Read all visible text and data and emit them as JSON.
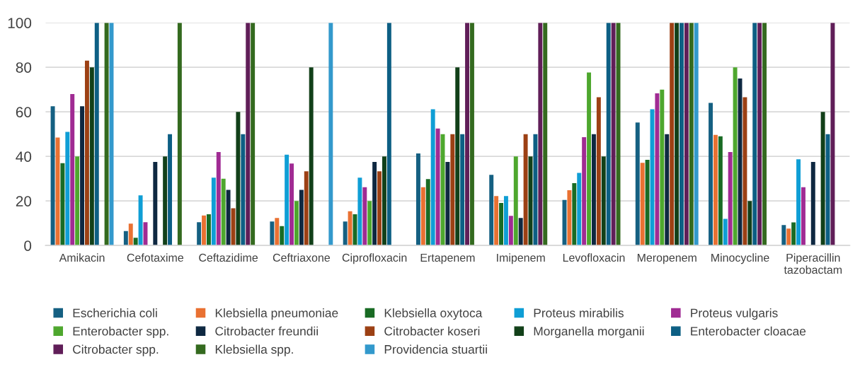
{
  "chart_data": {
    "type": "bar",
    "categories": [
      "Amikacin",
      "Cefotaxime",
      "Ceftazidime",
      "Ceftriaxone",
      "Ciprofloxacin",
      "Ertapenem",
      "Imipenem",
      "Levofloxacin",
      "Meropenem",
      "Minocycline",
      "Piperacillin\ntazobactam"
    ],
    "ylim": [
      0,
      100
    ],
    "yticks": [
      0,
      20,
      40,
      60,
      80,
      100
    ],
    "grid": "y",
    "legend": "bottom",
    "series": [
      {
        "name": "Escherichia coli",
        "color": "#156082",
        "values": [
          62.5,
          6.5,
          10.5,
          10.8,
          10.8,
          41.3,
          31.7,
          20.5,
          55.2,
          64,
          9.2
        ]
      },
      {
        "name": "Klebsiella pneumoniae",
        "color": "#e97132",
        "values": [
          48.5,
          9.8,
          13.5,
          12.4,
          15.4,
          26.2,
          22.2,
          24.8,
          37.1,
          49.7,
          7.6
        ]
      },
      {
        "name": "Klebsiella oxytoca",
        "color": "#196b24",
        "values": [
          37,
          3.5,
          14,
          8.7,
          14,
          29.8,
          19.1,
          28,
          38.5,
          49,
          10.4
        ]
      },
      {
        "name": "Proteus mirabilis",
        "color": "#0f9ed5",
        "values": [
          51,
          22.5,
          30.5,
          40.8,
          30.5,
          61.2,
          22.2,
          32.6,
          61.2,
          12,
          38.7
        ]
      },
      {
        "name": "Proteus vulgaris",
        "color": "#a02b93",
        "values": [
          68,
          10.5,
          42,
          36.8,
          26.2,
          52.5,
          13.3,
          48.6,
          68.3,
          42,
          26.2
        ]
      },
      {
        "name": "Enterobacter spp.",
        "color": "#4ea72e",
        "values": [
          40,
          null,
          30,
          20,
          20,
          50,
          40,
          77.7,
          70,
          80,
          null
        ]
      },
      {
        "name": "Citrobacter freundii",
        "color": "#0e2841",
        "values": [
          62.5,
          37.5,
          25,
          25,
          37.5,
          37.5,
          12.4,
          50,
          50,
          75,
          37.5
        ]
      },
      {
        "name": "Citrobacter koseri",
        "color": "#9c4014",
        "values": [
          83,
          null,
          16.7,
          33.3,
          33.3,
          50,
          50,
          66.6,
          100,
          66.6,
          null
        ]
      },
      {
        "name": "Morganella morganii",
        "color": "#124019",
        "values": [
          80,
          40,
          60,
          80,
          40,
          80,
          40,
          40,
          100,
          20,
          60
        ]
      },
      {
        "name": "Enterobacter cloacae",
        "color": "#0d5f84",
        "values": [
          100,
          50,
          50,
          null,
          100,
          50,
          50,
          100,
          100,
          100,
          50
        ]
      },
      {
        "name": "Citrobacter spp.",
        "color": "#601e58",
        "values": [
          null,
          null,
          100,
          null,
          null,
          100,
          100,
          100,
          100,
          100,
          100
        ]
      },
      {
        "name": "Klebsiella spp.",
        "color": "#346a1f",
        "values": [
          100,
          100,
          100,
          null,
          null,
          100,
          100,
          100,
          100,
          100,
          null
        ]
      },
      {
        "name": "Providencia stuartii",
        "color": "#3399cc",
        "values": [
          100,
          null,
          null,
          100,
          null,
          null,
          null,
          null,
          100,
          null,
          null
        ]
      }
    ]
  }
}
